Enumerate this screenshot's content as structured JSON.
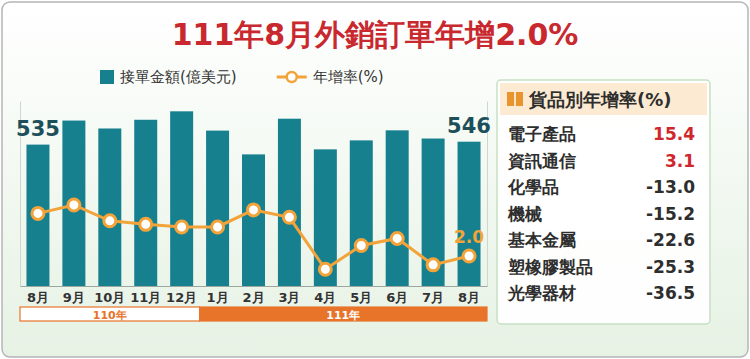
{
  "chart_data": [
    {
      "type": "bar",
      "title": "111年8月外銷訂單年增2.0%",
      "categories": [
        "8月",
        "9月",
        "10月",
        "11月",
        "12月",
        "1月",
        "2月",
        "3月",
        "4月",
        "5月",
        "6月",
        "7月",
        "8月"
      ],
      "periods": [
        {
          "label": "110年",
          "start": 0,
          "end": 4
        },
        {
          "label": "111年",
          "start": 5,
          "end": 12
        }
      ],
      "series": [
        {
          "name": "接單金額(億美元)",
          "type": "bar",
          "color": "#16808f",
          "values": [
            535,
            626,
            596,
            629,
            661,
            588,
            498,
            633,
            517,
            551,
            589,
            558,
            546
          ],
          "value_labels": [
            "535",
            null,
            null,
            null,
            null,
            null,
            null,
            null,
            null,
            null,
            null,
            null,
            "546"
          ]
        },
        {
          "name": "年增率(%)",
          "type": "line",
          "axis": "y2",
          "color": "#f2a33a",
          "marker": "circle",
          "values": [
            26.2,
            31.0,
            22.0,
            20.0,
            18.5,
            18.5,
            28.2,
            24.0,
            -5.5,
            8.0,
            12.0,
            -3.0,
            2.0
          ],
          "value_labels": [
            null,
            null,
            null,
            null,
            null,
            null,
            null,
            null,
            null,
            null,
            null,
            null,
            "2.0"
          ]
        }
      ],
      "ylim": [
        0,
        700
      ],
      "y2lim": [
        -15,
        90
      ],
      "tick_labels": "x",
      "legend": "top-left"
    },
    {
      "type": "table",
      "title": "貨品別年增率(%)",
      "rows": [
        {
          "label": "電子產品",
          "value": 15.4,
          "value_label": "15.4"
        },
        {
          "label": "資訊通信",
          "value": 3.1,
          "value_label": "3.1"
        },
        {
          "label": "化學品",
          "value": -13.0,
          "value_label": "-13.0"
        },
        {
          "label": "機械",
          "value": -15.2,
          "value_label": "-15.2"
        },
        {
          "label": "基本金屬",
          "value": -22.6,
          "value_label": "-22.6"
        },
        {
          "label": "塑橡膠製品",
          "value": -25.3,
          "value_label": "-25.3"
        },
        {
          "label": "光學器材",
          "value": -36.5,
          "value_label": "-36.5"
        }
      ]
    }
  ]
}
